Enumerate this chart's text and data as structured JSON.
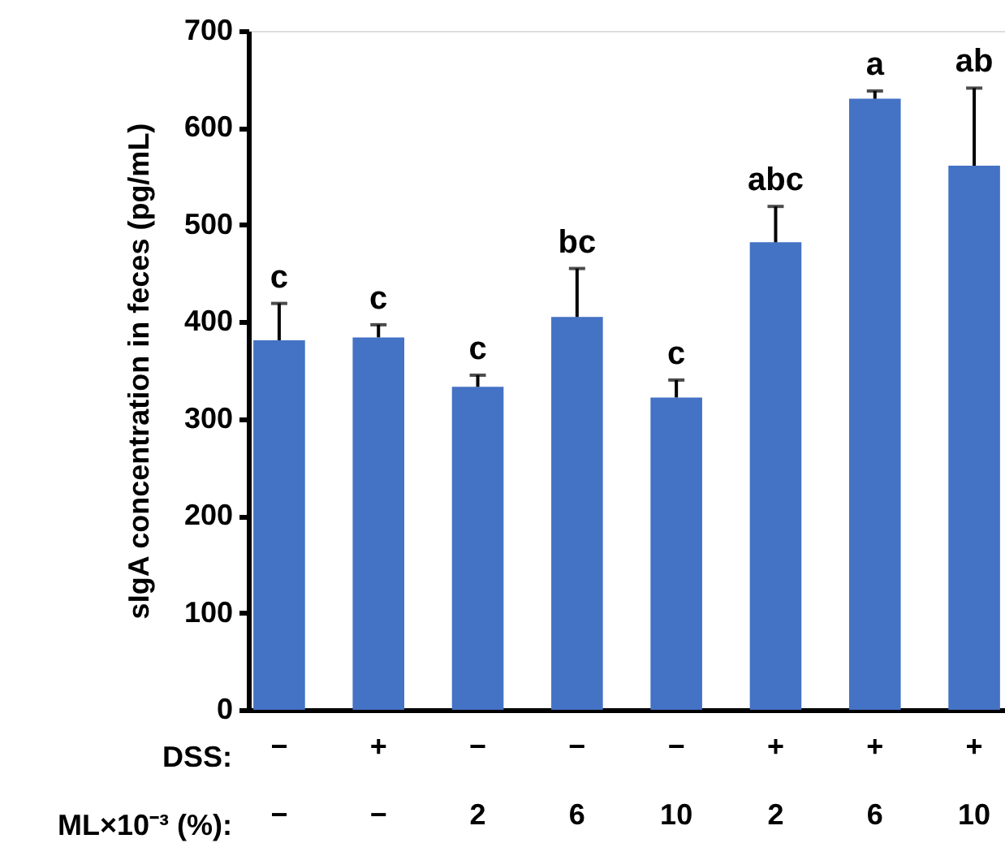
{
  "chart_data": {
    "type": "bar",
    "ylabel": "sIgA concentration in feces (pg/mL)",
    "categories": [
      "−\n−",
      "+\n−",
      "−\n2",
      "−\n6",
      "−\n10",
      "+\n2",
      "+\n6",
      "+\n10"
    ],
    "values": [
      381,
      384,
      333,
      405,
      322,
      482,
      630,
      561
    ],
    "errors": [
      [
        381,
        419
      ],
      [
        384,
        397
      ],
      [
        333,
        345
      ],
      [
        405,
        455
      ],
      [
        322,
        340
      ],
      [
        482,
        519
      ],
      [
        630,
        638
      ],
      [
        561,
        641
      ]
    ],
    "value_labels": [
      "c",
      "c",
      "c",
      "bc",
      "c",
      "abc",
      "a",
      "ab"
    ],
    "color": "#4472c4",
    "ylim": [
      0,
      700
    ],
    "yticks": [
      0,
      100,
      200,
      300,
      400,
      500,
      600,
      700
    ],
    "grid": false,
    "annotations": [
      "DSS:",
      "ML×10⁻³ (%):"
    ]
  }
}
